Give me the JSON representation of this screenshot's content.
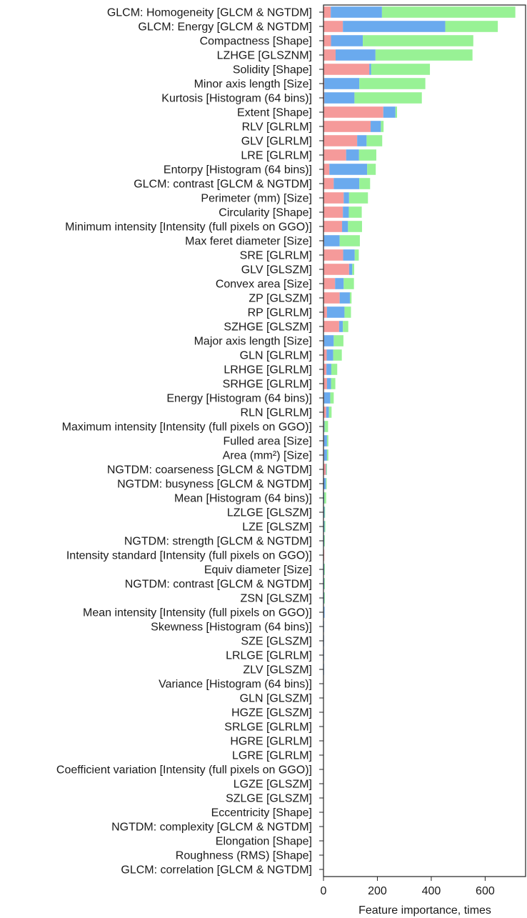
{
  "chart_data": {
    "type": "bar",
    "orientation": "horizontal",
    "stacked": true,
    "xlabel": "Feature importance, times",
    "ylabel": "",
    "xlim": [
      0,
      750
    ],
    "xticks": [
      0,
      200,
      400,
      600
    ],
    "grid": false,
    "legend": "none",
    "series_colors": [
      "#f59a9a",
      "#6aaaee",
      "#98f295"
    ],
    "categories": [
      "GLCM: Homogeneity [GLCM & NGTDM]",
      "GLCM: Energy [GLCM & NGTDM]",
      "Compactness [Shape]",
      "LZHGE [GLSZNM]",
      "Solidity [Shape]",
      "Minor axis length [Size]",
      "Kurtosis [Histogram (64 bins)]",
      "Extent [Shape]",
      "RLV [GLRLM]",
      "GLV [GLRLM]",
      "LRE [GLRLM]",
      "Entorpy [Histogram (64 bins)]",
      "GLCM: contrast [GLCM & NGTDM]",
      "Perimeter (mm) [Size]",
      "Circularity [Shape]",
      "Minimum intensity [Intensity (full pixels on GGO)]",
      "Max feret diameter [Size]",
      "SRE [GLRLM]",
      "GLV [GLSZM]",
      "Convex area [Size]",
      "ZP [GLSZM]",
      "RP [GLRLM]",
      "SZHGE [GLSZM]",
      "Major axis length [Size]",
      "GLN [GLRLM]",
      "LRHGE [GLRLM]",
      "SRHGE [GLRLM]",
      "Energy [Histogram (64 bins)]",
      "RLN [GLRLM]",
      "Maximum intensity [Intensity (full pixels on GGO)]",
      "Fulled area [Size]",
      "Area (mm²) [Size]",
      "NGTDM: coarseness [GLCM & NGTDM]",
      "NGTDM: busyness [GLCM & NGTDM]",
      "Mean [Histogram (64 bins)]",
      "LZLGE [GLSZM]",
      "LZE [GLSZM]",
      "NGTDM: strength [GLCM & NGTDM]",
      "Intensity standard [Intensity (full pixels on GGO)]",
      "Equiv diameter [Size]",
      "NGTDM: contrast [GLCM & NGTDM]",
      "ZSN [GLSZM]",
      "Mean intensity [Intensity (full pixels on GGO)]",
      "Skewness [Histogram (64 bins)]",
      "SZE [GLSZM]",
      "LRLGE [GLRLM]",
      "ZLV [GLSZM]",
      "Variance [Histogram (64 bins)]",
      "GLN [GLSZM]",
      "HGZE [GLSZM]",
      "SRLGE [GLRLM]",
      "HGRE [GLRLM]",
      "LGRE [GLRLM]",
      "Coefficient variation [Intensity (full pixels on GGO)]",
      "LGZE [GLSZM]",
      "SZLGE [GLSZM]",
      "Eccentricity [Shape]",
      "NGTDM: complexity [GLCM & NGTDM]",
      "Elongation [Shape]",
      "Roughness (RMS) [Shape]",
      "GLCM: correlation [GLCM & NGTDM]"
    ],
    "series": [
      {
        "values": [
          27,
          72,
          28,
          45,
          170,
          3,
          3,
          222,
          175,
          125,
          84,
          22,
          38,
          75,
          72,
          69,
          2,
          73,
          95,
          43,
          60,
          13,
          58,
          2,
          12,
          11,
          13,
          2,
          10,
          2,
          2,
          2,
          9,
          1,
          1,
          1,
          1,
          1,
          3,
          1,
          1,
          1,
          1,
          0,
          0,
          0,
          0,
          0,
          0,
          0,
          0,
          0,
          0,
          0,
          0,
          0,
          0,
          0,
          0,
          0,
          0
        ]
      },
      {
        "values": [
          190,
          380,
          118,
          148,
          7,
          130,
          112,
          45,
          38,
          35,
          48,
          140,
          95,
          20,
          22,
          22,
          58,
          43,
          12,
          32,
          38,
          65,
          14,
          36,
          24,
          18,
          15,
          23,
          10,
          2,
          11,
          11,
          2,
          8,
          2,
          3,
          3,
          2,
          0,
          2,
          2,
          2,
          3,
          1,
          1,
          1,
          1,
          0,
          0,
          0,
          0,
          0,
          0,
          0,
          0,
          0,
          0,
          0,
          0,
          0,
          0
        ]
      },
      {
        "values": [
          495,
          195,
          410,
          360,
          218,
          245,
          250,
          6,
          10,
          58,
          64,
          32,
          40,
          70,
          48,
          52,
          75,
          15,
          7,
          38,
          6,
          24,
          20,
          36,
          32,
          22,
          16,
          13,
          10,
          13,
          5,
          5,
          1,
          3,
          7,
          2,
          3,
          2,
          0,
          1,
          1,
          1,
          0,
          0,
          0,
          0,
          0,
          0,
          0,
          0,
          0,
          0,
          0,
          0,
          0,
          0,
          0,
          0,
          0,
          0,
          0
        ]
      }
    ]
  }
}
